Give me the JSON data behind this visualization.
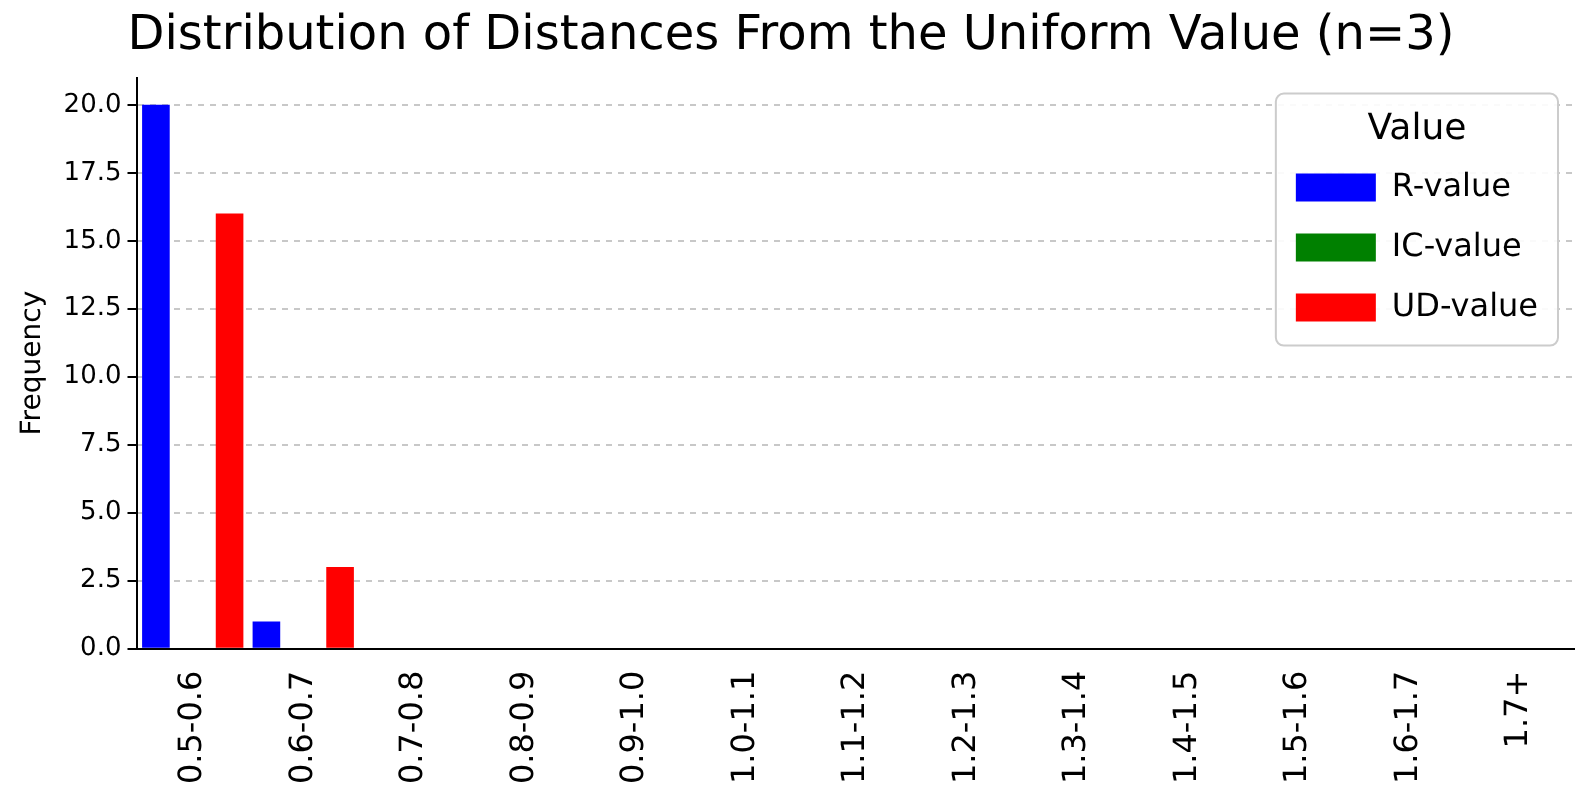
{
  "chart_data": {
    "type": "bar",
    "title": "Distribution of Distances From the Uniform Value (n=3)",
    "ylabel": "Frequency",
    "legend_title": "Value",
    "categories": [
      "0.5-0.6",
      "0.6-0.7",
      "0.7-0.8",
      "0.8-0.9",
      "0.9-1.0",
      "1.0-1.1",
      "1.1-1.2",
      "1.2-1.3",
      "1.3-1.4",
      "1.4-1.5",
      "1.5-1.6",
      "1.6-1.7",
      "1.7+"
    ],
    "series": [
      {
        "name": "R-value",
        "color": "#0000ff",
        "values": [
          20,
          1,
          0,
          0,
          0,
          0,
          0,
          0,
          0,
          0,
          0,
          0,
          0
        ]
      },
      {
        "name": "IC-value",
        "color": "#008000",
        "values": [
          0,
          0,
          0,
          0,
          0,
          0,
          0,
          0,
          0,
          0,
          0,
          0,
          0
        ]
      },
      {
        "name": "UD-value",
        "color": "#ff0000",
        "values": [
          16,
          3,
          0,
          0,
          0,
          0,
          0,
          0,
          0,
          0,
          0,
          0,
          0
        ]
      }
    ],
    "ylim": [
      0,
      21
    ],
    "yticks": [
      {
        "value": 0,
        "label": "0.0"
      },
      {
        "value": 2.5,
        "label": "2.5"
      },
      {
        "value": 5,
        "label": "5.0"
      },
      {
        "value": 7.5,
        "label": "7.5"
      },
      {
        "value": 10,
        "label": "10.0"
      },
      {
        "value": 12.5,
        "label": "12.5"
      },
      {
        "value": 15,
        "label": "15.0"
      },
      {
        "value": 17.5,
        "label": "17.5"
      },
      {
        "value": 20,
        "label": "20.0"
      }
    ],
    "grid": "y",
    "legend": "top right"
  }
}
